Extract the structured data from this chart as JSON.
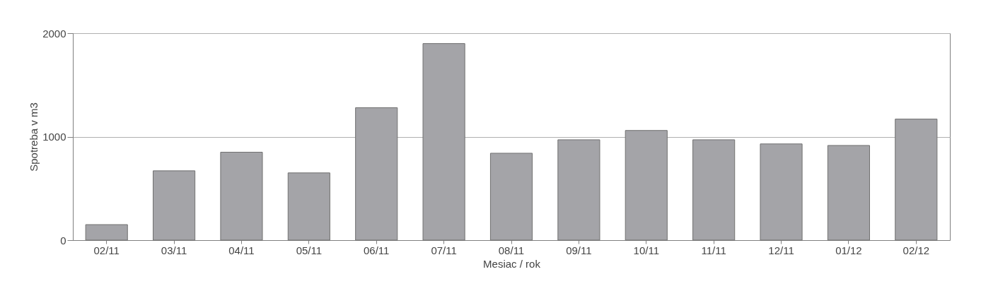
{
  "chart_data": {
    "type": "bar",
    "xlabel": "Mesiac / rok",
    "ylabel": "Spotreba v m3",
    "categories": [
      "02/11",
      "03/11",
      "04/11",
      "05/11",
      "06/11",
      "07/11",
      "08/11",
      "09/11",
      "10/11",
      "11/11",
      "12/11",
      "01/12",
      "02/12"
    ],
    "values": [
      150,
      670,
      850,
      650,
      1280,
      1900,
      840,
      970,
      1060,
      970,
      930,
      915,
      1170
    ],
    "color": "#a4a4a8",
    "ylim": [
      0,
      2000
    ],
    "yticks": [
      0,
      1000,
      2000
    ],
    "grid": "y"
  }
}
